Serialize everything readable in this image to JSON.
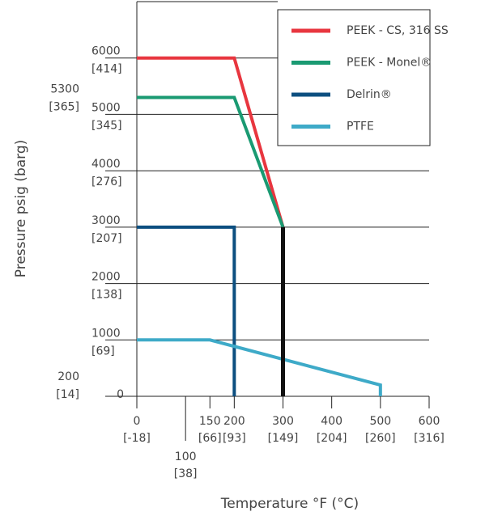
{
  "chart_data": {
    "type": "line",
    "ylabel": "Pressure psig (barg)",
    "xlabel": "Temperature °F (°C)",
    "xlim": [
      0,
      600
    ],
    "ylim": [
      0,
      7000
    ],
    "xticks": [
      {
        "value": 0,
        "label": [
          "0",
          "[-18]"
        ]
      },
      {
        "value": 100,
        "label": [
          "100",
          "[38]"
        ]
      },
      {
        "value": 150,
        "label": [
          "150",
          "[66]"
        ]
      },
      {
        "value": 200,
        "label": [
          "200",
          "[93]"
        ]
      },
      {
        "value": 300,
        "label": [
          "300",
          "[149]"
        ]
      },
      {
        "value": 400,
        "label": [
          "400",
          "[204]"
        ]
      },
      {
        "value": 500,
        "label": [
          "500",
          "[260]"
        ]
      },
      {
        "value": 600,
        "label": [
          "600",
          "[316]"
        ]
      }
    ],
    "yticks": [
      0,
      {
        "value": 1000,
        "label": [
          "1000",
          "[69]"
        ]
      },
      {
        "value": 2000,
        "label": [
          "2000",
          "[138]"
        ]
      },
      {
        "value": 3000,
        "label": [
          "3000",
          "[207]"
        ]
      },
      {
        "value": 4000,
        "label": [
          "4000",
          "[276]"
        ]
      },
      {
        "value": 5000,
        "label": [
          "5000",
          "[345]"
        ]
      },
      {
        "value": 6000,
        "label": [
          "6000",
          "[414]"
        ]
      }
    ],
    "yticks_minor": [
      {
        "value": 200,
        "label": [
          "200",
          "[14]"
        ]
      },
      {
        "value": 5300,
        "label": [
          "5300",
          "[365]"
        ]
      }
    ],
    "grid": true,
    "legend": "upper right",
    "series": [
      {
        "name": "PEEK - CS, 316 SS",
        "color": "#e8363f",
        "x": [
          0,
          200,
          300
        ],
        "values": [
          6000,
          6000,
          3000
        ]
      },
      {
        "name": "PEEK - Monel®",
        "color": "#1a9a72",
        "x": [
          0,
          200,
          300
        ],
        "values": [
          5300,
          5300,
          3000
        ]
      },
      {
        "name": "Delrin®",
        "color": "#0d4f80",
        "x": [
          0,
          200,
          200
        ],
        "values": [
          3000,
          3000,
          0
        ]
      },
      {
        "name": "PTFE",
        "color": "#3eaac8",
        "x": [
          0,
          150,
          500,
          500
        ],
        "values": [
          1000,
          1000,
          200,
          0
        ]
      },
      {
        "color": "#111111",
        "x": [
          300,
          300
        ],
        "values": [
          3000,
          0
        ]
      }
    ]
  }
}
